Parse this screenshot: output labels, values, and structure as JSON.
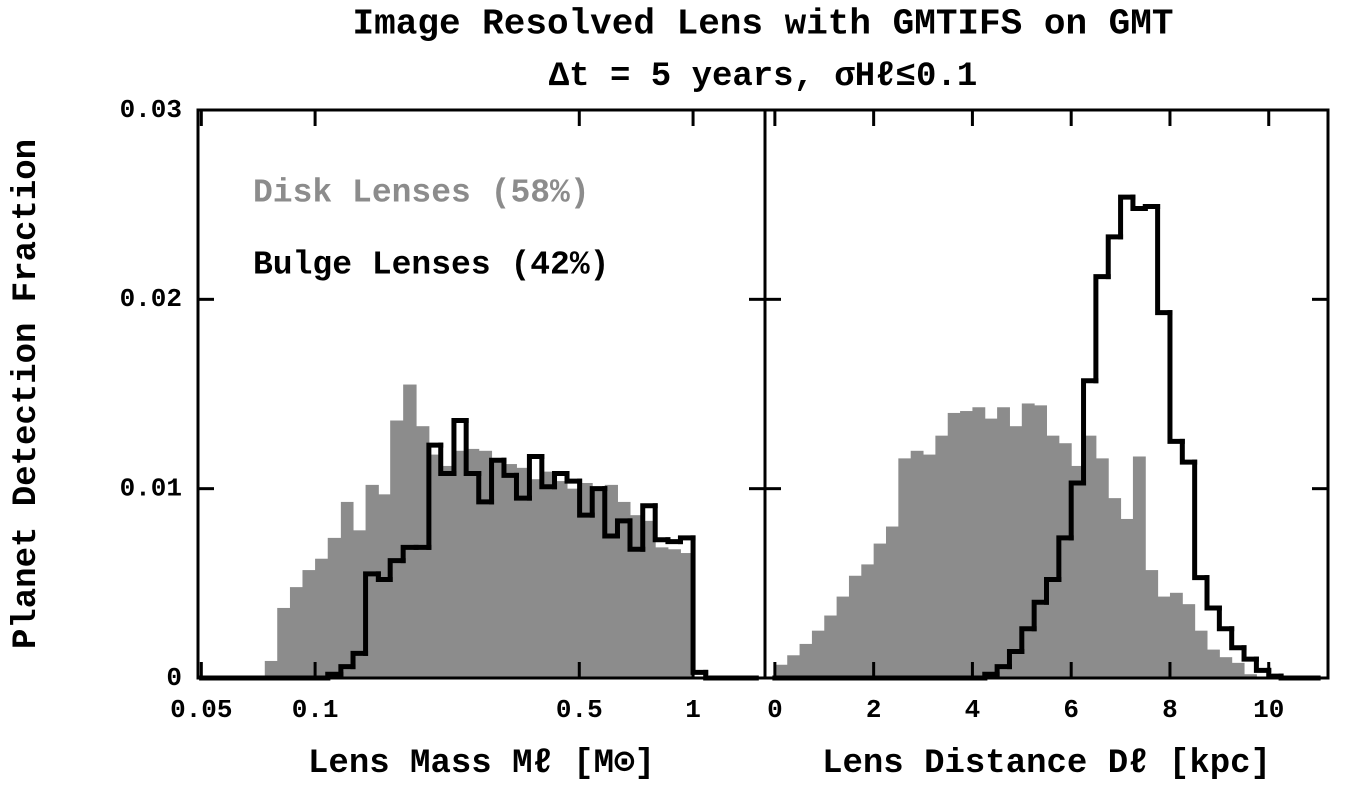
{
  "chart_data": [
    {
      "type": "histogram",
      "title": "Image Resolved Lens with GMTIFS on GMT",
      "subtitle": "Δt = 5 years, σHℓ≤0.1",
      "ylabel": "Planet Detection Fraction",
      "xlabel": "Lens Mass Mℓ [M⊙]",
      "xlog": true,
      "legend": "upper left",
      "bins": [
        0.0501,
        0.0541,
        0.0584,
        0.0631,
        0.0681,
        0.0736,
        0.0794,
        0.0858,
        0.0926,
        0.1,
        0.108,
        0.117,
        0.126,
        0.136,
        0.147,
        0.158,
        0.171,
        0.185,
        0.2,
        0.215,
        0.233,
        0.251,
        0.271,
        0.293,
        0.316,
        0.341,
        0.369,
        0.398,
        0.43,
        0.464,
        0.501,
        0.541,
        0.584,
        0.631,
        0.681,
        0.736,
        0.794,
        0.858,
        0.926,
        1.0,
        1.08,
        1.17,
        1.26,
        1.36,
        1.47
      ],
      "series": [
        {
          "name": "Bulge Lenses (42%)",
          "color": "#000000",
          "style": "step",
          "values": [
            0,
            0,
            0,
            0,
            0,
            0,
            0,
            0,
            0,
            0,
            0.0002,
            0.0006,
            0.0013,
            0.0055,
            0.0052,
            0.0062,
            0.0069,
            0.0069,
            0.0123,
            0.0108,
            0.0136,
            0.0108,
            0.0093,
            0.0115,
            0.0107,
            0.0095,
            0.0117,
            0.0101,
            0.0108,
            0.0104,
            0.0086,
            0.01,
            0.0075,
            0.0083,
            0.0068,
            0.0091,
            0.0073,
            0.0072,
            0.0074,
            0.0003,
            0,
            0,
            0,
            0
          ]
        },
        {
          "name": "Disk Lenses (58%)",
          "color": "#8c8c8c",
          "style": "filled",
          "values": [
            0,
            0,
            0,
            0,
            0,
            0.0009,
            0.0037,
            0.0048,
            0.0057,
            0.0063,
            0.0074,
            0.0093,
            0.0078,
            0.0102,
            0.0097,
            0.0136,
            0.0155,
            0.0133,
            0.0118,
            0.0112,
            0.012,
            0.0121,
            0.012,
            0.0116,
            0.0113,
            0.0111,
            0.0105,
            0.0109,
            0.0104,
            0.01,
            0.0103,
            0.01,
            0.0102,
            0.0093,
            0.0086,
            0.0083,
            0.0069,
            0.0068,
            0.0066,
            0,
            0,
            0,
            0,
            0
          ]
        }
      ],
      "xlim": [
        0.049,
        1.55
      ],
      "xticks": [
        0.05,
        0.1,
        0.5,
        1
      ],
      "ylim": [
        0,
        0.03
      ],
      "yticks": [
        0,
        0.01,
        0.02,
        0.03
      ]
    },
    {
      "type": "histogram",
      "xlabel": "Lens Distance Dℓ [kpc]",
      "xlog": false,
      "ytick_labels": false,
      "bins": [
        0,
        0.25,
        0.5,
        0.75,
        1,
        1.25,
        1.5,
        1.75,
        2,
        2.25,
        2.5,
        2.75,
        3,
        3.25,
        3.5,
        3.75,
        4,
        4.25,
        4.5,
        4.75,
        5,
        5.25,
        5.5,
        5.75,
        6,
        6.25,
        6.5,
        6.75,
        7,
        7.25,
        7.5,
        7.75,
        8,
        8.25,
        8.5,
        8.75,
        9,
        9.25,
        9.5,
        9.75,
        10,
        10.25,
        10.5,
        10.75,
        11
      ],
      "series": [
        {
          "color": "#000000",
          "style": "step",
          "values": [
            0,
            0,
            0,
            0,
            0,
            0,
            0,
            0,
            0,
            0,
            0,
            0,
            0,
            0,
            0,
            0,
            0,
            0.0002,
            0.0006,
            0.0014,
            0.0026,
            0.004,
            0.0052,
            0.0074,
            0.0103,
            0.0157,
            0.0212,
            0.0233,
            0.0254,
            0.0248,
            0.0249,
            0.0193,
            0.0125,
            0.0114,
            0.0053,
            0.0037,
            0.0026,
            0.0016,
            0.001,
            0.0004,
            0.0001,
            0,
            0,
            0
          ]
        },
        {
          "color": "#8c8c8c",
          "style": "filled",
          "values": [
            0.0007,
            0.0012,
            0.0018,
            0.0025,
            0.0033,
            0.0043,
            0.0054,
            0.006,
            0.0071,
            0.008,
            0.0116,
            0.012,
            0.0118,
            0.0128,
            0.014,
            0.0141,
            0.0143,
            0.0137,
            0.0143,
            0.0133,
            0.0145,
            0.0144,
            0.0128,
            0.0124,
            0.0112,
            0.0128,
            0.0116,
            0.0095,
            0.0084,
            0.0117,
            0.0057,
            0.0043,
            0.0045,
            0.0039,
            0.0025,
            0.0015,
            0.0011,
            0.0008,
            0.0002,
            0,
            0,
            0,
            0,
            0
          ]
        }
      ],
      "xlim": [
        -0.2,
        11.2
      ],
      "xticks": [
        0,
        2,
        4,
        6,
        8,
        10
      ],
      "ylim": [
        0,
        0.03
      ],
      "yticks": [
        0,
        0.01,
        0.02,
        0.03
      ]
    }
  ]
}
